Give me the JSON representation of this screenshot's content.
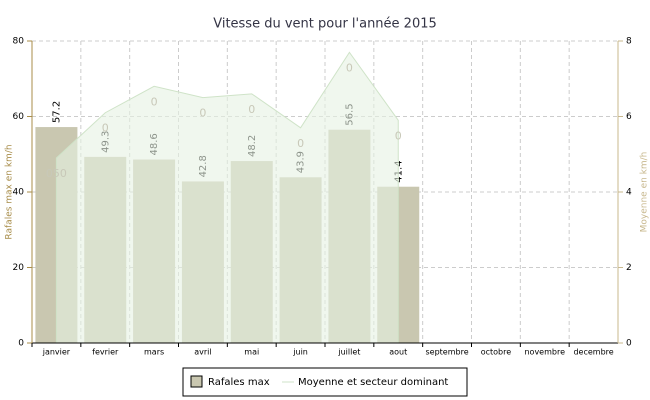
{
  "chart_data": {
    "type": "bar",
    "title": "Vitesse du vent pour l'année 2015",
    "categories": [
      "janvier",
      "fevrier",
      "mars",
      "avril",
      "mai",
      "juin",
      "juillet",
      "aout",
      "septembre",
      "octobre",
      "novembre",
      "decembre"
    ],
    "series": [
      {
        "name": "Rafales max",
        "color": "#c9c7b0",
        "values": [
          57.2,
          49.3,
          48.6,
          42.8,
          48.2,
          43.9,
          56.5,
          41.4,
          null,
          null,
          null,
          null
        ]
      },
      {
        "name": "Moyenne et secteur dominant",
        "color": "#e6f2e2",
        "axis": "y2",
        "values": [
          4.9,
          6.1,
          6.8,
          6.5,
          6.6,
          5.7,
          7.7,
          5.9,
          null,
          null,
          null,
          null
        ],
        "point_labels": [
          "050",
          "0",
          "0",
          "0",
          "0",
          "0",
          "0",
          "0",
          null,
          null,
          null,
          null
        ]
      }
    ],
    "ylabel": "Rafales max en km/h",
    "y2label": "Moyenne en km/h",
    "ylim": [
      0,
      80
    ],
    "yticks": [
      0,
      20,
      40,
      60,
      80
    ],
    "y2lim": [
      0,
      8
    ],
    "y2ticks": [
      0,
      2,
      4,
      6,
      8
    ],
    "grid": true
  }
}
